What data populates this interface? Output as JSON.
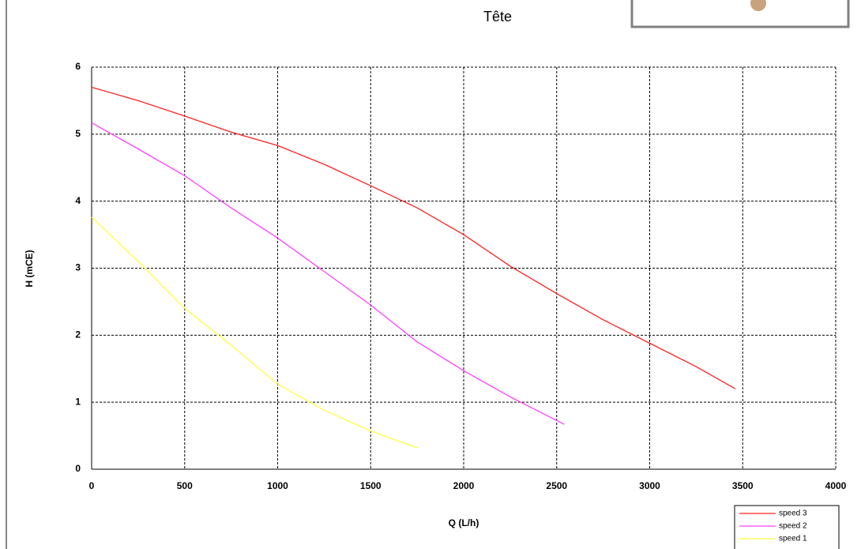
{
  "header": {
    "title": "Tête"
  },
  "chart_data": {
    "type": "line",
    "xlabel": "Q (L/h)",
    "ylabel": "H (mCE)",
    "xlim": [
      0,
      4000
    ],
    "xticks": [
      0,
      500,
      1000,
      1500,
      2000,
      2500,
      3000,
      3500,
      4000
    ],
    "ylim": [
      0,
      6
    ],
    "yticks": [
      0,
      1,
      2,
      3,
      4,
      5,
      6
    ],
    "grid": true,
    "legend": "bottom-right",
    "series": [
      {
        "name": "speed 3",
        "color": "#ff2020",
        "x": [
          0,
          250,
          500,
          750,
          1000,
          1250,
          1500,
          1750,
          2000,
          2250,
          2500,
          2750,
          3000,
          3250,
          3460
        ],
        "values": [
          5.7,
          5.5,
          5.27,
          5.03,
          4.83,
          4.55,
          4.23,
          3.9,
          3.5,
          3.03,
          2.62,
          2.23,
          1.88,
          1.53,
          1.2
        ]
      },
      {
        "name": "speed 2",
        "color": "#ff40ff",
        "x": [
          0,
          250,
          500,
          750,
          1000,
          1250,
          1500,
          1750,
          2000,
          2250,
          2540
        ],
        "values": [
          5.17,
          4.78,
          4.38,
          3.9,
          3.45,
          2.95,
          2.45,
          1.9,
          1.47,
          1.08,
          0.67
        ]
      },
      {
        "name": "speed 1",
        "color": "#ffff40",
        "x": [
          0,
          250,
          500,
          750,
          1000,
          1250,
          1500,
          1750
        ],
        "values": [
          3.76,
          3.1,
          2.4,
          1.85,
          1.27,
          0.88,
          0.57,
          0.32
        ]
      }
    ]
  }
}
